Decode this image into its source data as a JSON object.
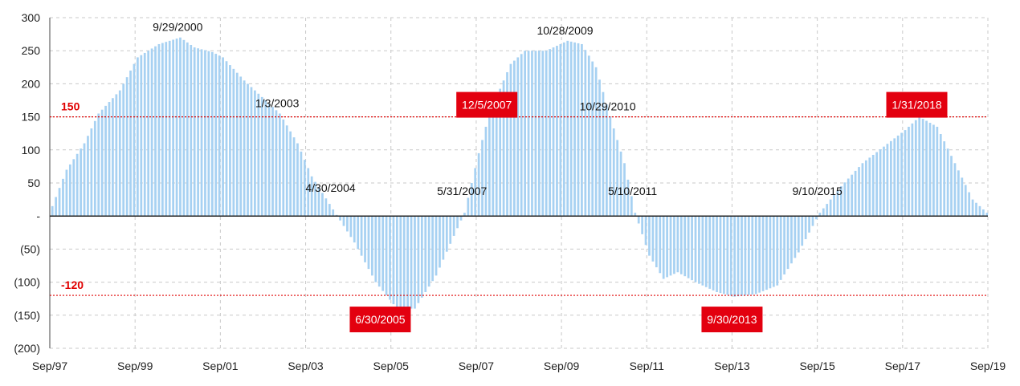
{
  "chart_data": {
    "type": "bar",
    "x_start": "1997-09",
    "x_end": "2019-09",
    "x_tick_labels": [
      "Sep/97",
      "Sep/99",
      "Sep/01",
      "Sep/03",
      "Sep/05",
      "Sep/07",
      "Sep/09",
      "Sep/11",
      "Sep/13",
      "Sep/15",
      "Sep/17",
      "Sep/19"
    ],
    "y_tick_labels": [
      "300",
      "250",
      "200",
      "150",
      "100",
      "50",
      "-",
      "(50)",
      "(100)",
      "(150)",
      "(200)"
    ],
    "ylim": [
      -200,
      300
    ],
    "grid": "dashed vertical and horizontal gridlines",
    "bar_color": "#a7d1f2",
    "reference_lines": [
      {
        "label": "150",
        "value": 150,
        "color": "#e00000"
      },
      {
        "label": "-120",
        "value": -120,
        "color": "#e00000"
      }
    ],
    "keypoints": [
      {
        "date": "1997-09",
        "value": 15
      },
      {
        "date": "1998-01",
        "value": 70
      },
      {
        "date": "1998-06",
        "value": 110
      },
      {
        "date": "1998-10",
        "value": 155
      },
      {
        "date": "1999-04",
        "value": 190
      },
      {
        "date": "1999-09",
        "value": 240
      },
      {
        "date": "2000-03",
        "value": 260
      },
      {
        "date": "2000-09",
        "value": 270
      },
      {
        "date": "2001-01",
        "value": 255
      },
      {
        "date": "2001-06",
        "value": 248
      },
      {
        "date": "2001-09",
        "value": 240
      },
      {
        "date": "2002-03",
        "value": 205
      },
      {
        "date": "2002-09",
        "value": 175
      },
      {
        "date": "2003-01",
        "value": 155
      },
      {
        "date": "2003-06",
        "value": 110
      },
      {
        "date": "2003-10",
        "value": 60
      },
      {
        "date": "2004-04",
        "value": 10
      },
      {
        "date": "2004-10",
        "value": -40
      },
      {
        "date": "2005-04",
        "value": -100
      },
      {
        "date": "2005-10",
        "value": -140
      },
      {
        "date": "2006-03",
        "value": -140
      },
      {
        "date": "2006-09",
        "value": -90
      },
      {
        "date": "2007-02",
        "value": -30
      },
      {
        "date": "2007-05",
        "value": 5
      },
      {
        "date": "2007-09",
        "value": 95
      },
      {
        "date": "2007-12",
        "value": 155
      },
      {
        "date": "2008-06",
        "value": 230
      },
      {
        "date": "2008-10",
        "value": 250
      },
      {
        "date": "2009-04",
        "value": 250
      },
      {
        "date": "2009-10",
        "value": 265
      },
      {
        "date": "2010-02",
        "value": 260
      },
      {
        "date": "2010-06",
        "value": 225
      },
      {
        "date": "2010-10",
        "value": 150
      },
      {
        "date": "2011-02",
        "value": 80
      },
      {
        "date": "2011-05",
        "value": 5
      },
      {
        "date": "2011-09",
        "value": -60
      },
      {
        "date": "2012-01",
        "value": -95
      },
      {
        "date": "2012-05",
        "value": -85
      },
      {
        "date": "2012-10",
        "value": -100
      },
      {
        "date": "2013-04",
        "value": -115
      },
      {
        "date": "2013-09",
        "value": -122
      },
      {
        "date": "2014-03",
        "value": -118
      },
      {
        "date": "2014-09",
        "value": -105
      },
      {
        "date": "2015-03",
        "value": -55
      },
      {
        "date": "2015-09",
        "value": 5
      },
      {
        "date": "2016-03",
        "value": 45
      },
      {
        "date": "2016-09",
        "value": 80
      },
      {
        "date": "2017-03",
        "value": 105
      },
      {
        "date": "2017-09",
        "value": 130
      },
      {
        "date": "2018-01",
        "value": 150
      },
      {
        "date": "2018-06",
        "value": 135
      },
      {
        "date": "2018-11",
        "value": 80
      },
      {
        "date": "2019-04",
        "value": 25
      },
      {
        "date": "2019-08",
        "value": 5
      }
    ],
    "annotations": [
      {
        "text": "9/29/2000",
        "date": "2000-09",
        "value": 270,
        "boxed": false
      },
      {
        "text": "1/3/2003",
        "date": "2003-01",
        "value": 155,
        "boxed": false
      },
      {
        "text": "4/30/2004",
        "date": "2004-04",
        "value": 10,
        "boxed": false
      },
      {
        "text": "6/30/2005",
        "date": "2005-06",
        "value": -120,
        "boxed": true
      },
      {
        "text": "5/31/2007",
        "date": "2007-05",
        "value": 5,
        "boxed": false
      },
      {
        "text": "12/5/2007",
        "date": "2007-12",
        "value": 150,
        "boxed": true
      },
      {
        "text": "10/28/2009",
        "date": "2009-10",
        "value": 265,
        "boxed": false
      },
      {
        "text": "10/29/2010",
        "date": "2010-10",
        "value": 150,
        "boxed": false
      },
      {
        "text": "5/10/2011",
        "date": "2011-05",
        "value": 5,
        "boxed": false
      },
      {
        "text": "9/30/2013",
        "date": "2013-09",
        "value": -120,
        "boxed": true
      },
      {
        "text": "9/10/2015",
        "date": "2015-09",
        "value": 5,
        "boxed": false
      },
      {
        "text": "1/31/2018",
        "date": "2018-01",
        "value": 150,
        "boxed": true
      }
    ]
  }
}
